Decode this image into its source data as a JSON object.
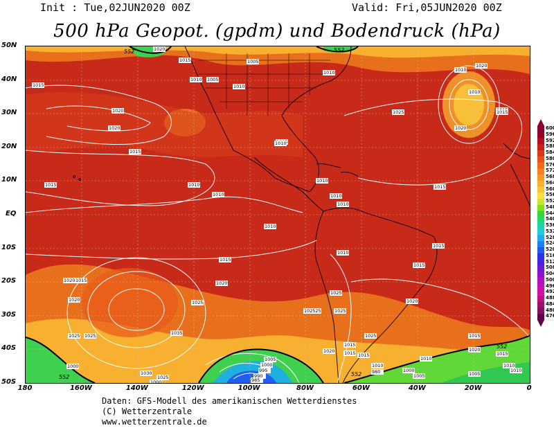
{
  "header": {
    "init": "Init : Tue,02JUN2020 00Z",
    "valid": "Valid: Fri,05JUN2020 00Z",
    "title": "500 hPa Geopot. (gpdm) und Bodendruck (hPa)"
  },
  "axes": {
    "lat_labels": [
      "50N",
      "40N",
      "30N",
      "20N",
      "10N",
      "EQ",
      "10S",
      "20S",
      "30S",
      "40S",
      "50S"
    ],
    "lon_labels": [
      "180",
      "160W",
      "140W",
      "120W",
      "100W",
      "80W",
      "60W",
      "40W",
      "20W",
      "0"
    ]
  },
  "colorbar": {
    "labels": [
      "600",
      "596",
      "592",
      "588",
      "584",
      "580",
      "576",
      "572",
      "568",
      "564",
      "560",
      "556",
      "552",
      "548",
      "544",
      "540",
      "536",
      "532",
      "528",
      "524",
      "520",
      "516",
      "512",
      "508",
      "504",
      "500",
      "496",
      "492",
      "488",
      "484",
      "480",
      "476"
    ],
    "colors": [
      "#8c0030",
      "#a00020",
      "#b41020",
      "#c82018",
      "#d83818",
      "#e85018",
      "#f06818",
      "#f88020",
      "#f89828",
      "#f8b030",
      "#f8c838",
      "#f8e040",
      "#c8e830",
      "#80e020",
      "#30d830",
      "#20d870",
      "#20d0b0",
      "#20c8e0",
      "#20a8f0",
      "#2080f0",
      "#2058f0",
      "#3030e8",
      "#5020e0",
      "#7018d8",
      "#9010d0",
      "#b010c8",
      "#c810b8",
      "#d810a0",
      "#c01080",
      "#a01070",
      "#801060",
      "#600050"
    ]
  },
  "map": {
    "ridge_color": "#b81c1c",
    "mid_color": "#d8401a",
    "trough_color": "#f0a030",
    "low_color": "#20c850",
    "isobar_labels": [
      "1020",
      "1015",
      "1010",
      "1005",
      "1010",
      "1010",
      "1005",
      "1010",
      "1015",
      "1020",
      "1020",
      "1020",
      "1015",
      "1010",
      "1015",
      "1025",
      "1020",
      "1015",
      "1005",
      "1010",
      "1010",
      "1010",
      "1010",
      "1015",
      "1010",
      "1010",
      "1010",
      "1010",
      "1015",
      "1015",
      "1015",
      "1020",
      "1020",
      "1015",
      "1020",
      "1025",
      "1025",
      "1020",
      "1015",
      "1025",
      "1025",
      "1025",
      "1025",
      "1035",
      "1025",
      "1015",
      "1030",
      "1025",
      "1020",
      "1015",
      "1010",
      "1005",
      "1000",
      "995",
      "990",
      "985",
      "980",
      "1000",
      "1005",
      "1010",
      "1020",
      "1015",
      "1010",
      "1005",
      "1000",
      "1000",
      "1025",
      "1015",
      "1010",
      "1015"
    ],
    "geopot_labels": [
      "552",
      "552",
      "552",
      "552",
      "552"
    ]
  },
  "footer": {
    "line1": "Daten: GFS-Modell des amerikanischen Wetterdienstes",
    "line2": "(C) Wetterzentrale",
    "line3": "www.wetterzentrale.de"
  }
}
